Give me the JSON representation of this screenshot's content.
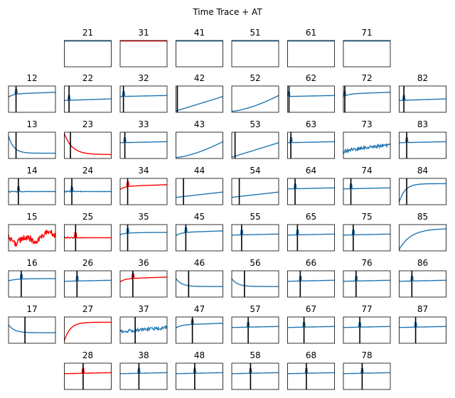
{
  "chart_data": {
    "type": "line",
    "title": "Time Trace + AT",
    "axes_ticks": "none",
    "colors": {
      "normal": "#1f77b4",
      "flagged": "#ff0000",
      "marker": "#000000",
      "frame": "#000000"
    },
    "panels": [
      {
        "label": "21",
        "row": 0,
        "col": 1,
        "shape": "flat_top",
        "color": "normal",
        "marker": null
      },
      {
        "label": "31",
        "row": 0,
        "col": 2,
        "shape": "flat_top",
        "color": "flagged",
        "marker": null
      },
      {
        "label": "41",
        "row": 0,
        "col": 3,
        "shape": "flat_top",
        "color": "normal",
        "marker": null
      },
      {
        "label": "51",
        "row": 0,
        "col": 4,
        "shape": "flat_top",
        "color": "normal",
        "marker": null
      },
      {
        "label": "61",
        "row": 0,
        "col": 5,
        "shape": "flat_top",
        "color": "normal",
        "marker": null
      },
      {
        "label": "71",
        "row": 0,
        "col": 6,
        "shape": "flat_top",
        "color": "normal",
        "marker": null
      },
      {
        "label": "12",
        "row": 1,
        "col": 0,
        "shape": "spike_decay",
        "color": "normal",
        "marker": 0.16
      },
      {
        "label": "22",
        "row": 1,
        "col": 1,
        "shape": "spike_low",
        "color": "normal",
        "marker": 0.1
      },
      {
        "label": "32",
        "row": 1,
        "col": 2,
        "shape": "spike_flat",
        "color": "normal",
        "marker": 0.07
      },
      {
        "label": "42",
        "row": 1,
        "col": 3,
        "shape": "rising",
        "color": "normal",
        "marker": 0.03
      },
      {
        "label": "52",
        "row": 1,
        "col": 4,
        "shape": "rising_late",
        "color": "normal",
        "marker": null
      },
      {
        "label": "62",
        "row": 1,
        "col": 5,
        "shape": "spike_flat",
        "color": "normal",
        "marker": 0.03
      },
      {
        "label": "72",
        "row": 1,
        "col": 6,
        "shape": "spike_decay",
        "color": "normal",
        "marker": 0.03
      },
      {
        "label": "82",
        "row": 1,
        "col": 7,
        "shape": "spike_low",
        "color": "normal",
        "marker": 0.1
      },
      {
        "label": "13",
        "row": 2,
        "col": 0,
        "shape": "decay_low",
        "color": "normal",
        "marker": 0.16
      },
      {
        "label": "23",
        "row": 2,
        "col": 1,
        "shape": "decay_steep",
        "color": "flagged",
        "marker": 0.13
      },
      {
        "label": "33",
        "row": 2,
        "col": 2,
        "shape": "spike_flat",
        "color": "normal",
        "marker": 0.1
      },
      {
        "label": "43",
        "row": 2,
        "col": 3,
        "shape": "rising_late",
        "color": "normal",
        "marker": null
      },
      {
        "label": "53",
        "row": 2,
        "col": 4,
        "shape": "rising",
        "color": "normal",
        "marker": 0.07
      },
      {
        "label": "63",
        "row": 2,
        "col": 5,
        "shape": "spike_flat",
        "color": "normal",
        "marker": 0.07
      },
      {
        "label": "73",
        "row": 2,
        "col": 6,
        "shape": "noisy_rise",
        "color": "normal",
        "marker": null
      },
      {
        "label": "83",
        "row": 2,
        "col": 7,
        "shape": "spike_flat",
        "color": "normal",
        "marker": 0.16
      },
      {
        "label": "14",
        "row": 3,
        "col": 0,
        "shape": "noisy_spike",
        "color": "normal",
        "marker": 0.21
      },
      {
        "label": "24",
        "row": 3,
        "col": 1,
        "shape": "noisy_spike",
        "color": "normal",
        "marker": 0.16
      },
      {
        "label": "34",
        "row": 3,
        "col": 2,
        "shape": "spike_decay",
        "color": "flagged",
        "marker": 0.16
      },
      {
        "label": "44",
        "row": 3,
        "col": 3,
        "shape": "slow_rise",
        "color": "normal",
        "marker": 0.16
      },
      {
        "label": "54",
        "row": 3,
        "col": 4,
        "shape": "slow_rise",
        "color": "normal",
        "marker": 0.16
      },
      {
        "label": "64",
        "row": 3,
        "col": 5,
        "shape": "spike_flat",
        "color": "normal",
        "marker": 0.16
      },
      {
        "label": "74",
        "row": 3,
        "col": 6,
        "shape": "spike_flat",
        "color": "normal",
        "marker": 0.16
      },
      {
        "label": "84",
        "row": 3,
        "col": 7,
        "shape": "saturate",
        "color": "normal",
        "marker": 0.16
      },
      {
        "label": "15",
        "row": 4,
        "col": 0,
        "shape": "wander",
        "color": "flagged",
        "marker": null
      },
      {
        "label": "25",
        "row": 4,
        "col": 1,
        "shape": "noisy_spike",
        "color": "flagged",
        "marker": 0.24
      },
      {
        "label": "35",
        "row": 4,
        "col": 2,
        "shape": "double_spike",
        "color": "normal",
        "marker": 0.16
      },
      {
        "label": "45",
        "row": 4,
        "col": 3,
        "shape": "spike_decay",
        "color": "normal",
        "marker": 0.21
      },
      {
        "label": "55",
        "row": 4,
        "col": 4,
        "shape": "spike_flat",
        "color": "normal",
        "marker": 0.21
      },
      {
        "label": "65",
        "row": 4,
        "col": 5,
        "shape": "spike_flat",
        "color": "normal",
        "marker": 0.21
      },
      {
        "label": "75",
        "row": 4,
        "col": 6,
        "shape": "spike_flat",
        "color": "normal",
        "marker": 0.21
      },
      {
        "label": "85",
        "row": 4,
        "col": 7,
        "shape": "saturate_slow",
        "color": "normal",
        "marker": null
      },
      {
        "label": "16",
        "row": 5,
        "col": 0,
        "shape": "double_spike",
        "color": "normal",
        "marker": 0.27
      },
      {
        "label": "26",
        "row": 5,
        "col": 1,
        "shape": "spike_flat",
        "color": "normal",
        "marker": 0.27
      },
      {
        "label": "36",
        "row": 5,
        "col": 2,
        "shape": "spike_decay",
        "color": "flagged",
        "marker": 0.27
      },
      {
        "label": "46",
        "row": 5,
        "col": 3,
        "shape": "decay_spike",
        "color": "normal",
        "marker": 0.27
      },
      {
        "label": "56",
        "row": 5,
        "col": 4,
        "shape": "decay_spike",
        "color": "normal",
        "marker": 0.27
      },
      {
        "label": "66",
        "row": 5,
        "col": 5,
        "shape": "spike_flat",
        "color": "normal",
        "marker": 0.27
      },
      {
        "label": "76",
        "row": 5,
        "col": 6,
        "shape": "spike_flat",
        "color": "normal",
        "marker": 0.27
      },
      {
        "label": "86",
        "row": 5,
        "col": 7,
        "shape": "spike_flat",
        "color": "normal",
        "marker": 0.27
      },
      {
        "label": "17",
        "row": 6,
        "col": 0,
        "shape": "decay_spike",
        "color": "normal",
        "marker": 0.35
      },
      {
        "label": "27",
        "row": 6,
        "col": 1,
        "shape": "saturate",
        "color": "flagged",
        "marker": null
      },
      {
        "label": "37",
        "row": 6,
        "col": 2,
        "shape": "noisy_step",
        "color": "normal",
        "marker": 0.32
      },
      {
        "label": "47",
        "row": 6,
        "col": 3,
        "shape": "spike_decay",
        "color": "normal",
        "marker": 0.35
      },
      {
        "label": "57",
        "row": 6,
        "col": 4,
        "shape": "spike_flat",
        "color": "normal",
        "marker": 0.35
      },
      {
        "label": "67",
        "row": 6,
        "col": 5,
        "shape": "spike_flat",
        "color": "normal",
        "marker": 0.35
      },
      {
        "label": "77",
        "row": 6,
        "col": 6,
        "shape": "spike_flat",
        "color": "normal",
        "marker": 0.35
      },
      {
        "label": "87",
        "row": 6,
        "col": 7,
        "shape": "spike_flat",
        "color": "normal",
        "marker": 0.35
      },
      {
        "label": "28",
        "row": 7,
        "col": 1,
        "shape": "spike_flat",
        "color": "flagged",
        "marker": 0.4
      },
      {
        "label": "38",
        "row": 7,
        "col": 2,
        "shape": "spike_flat",
        "color": "normal",
        "marker": 0.4
      },
      {
        "label": "48",
        "row": 7,
        "col": 3,
        "shape": "spike_flat",
        "color": "normal",
        "marker": 0.4
      },
      {
        "label": "58",
        "row": 7,
        "col": 4,
        "shape": "spike_flat",
        "color": "normal",
        "marker": 0.4
      },
      {
        "label": "68",
        "row": 7,
        "col": 5,
        "shape": "spike_flat",
        "color": "normal",
        "marker": 0.4
      },
      {
        "label": "78",
        "row": 7,
        "col": 6,
        "shape": "spike_flat",
        "color": "normal",
        "marker": 0.4
      }
    ]
  }
}
